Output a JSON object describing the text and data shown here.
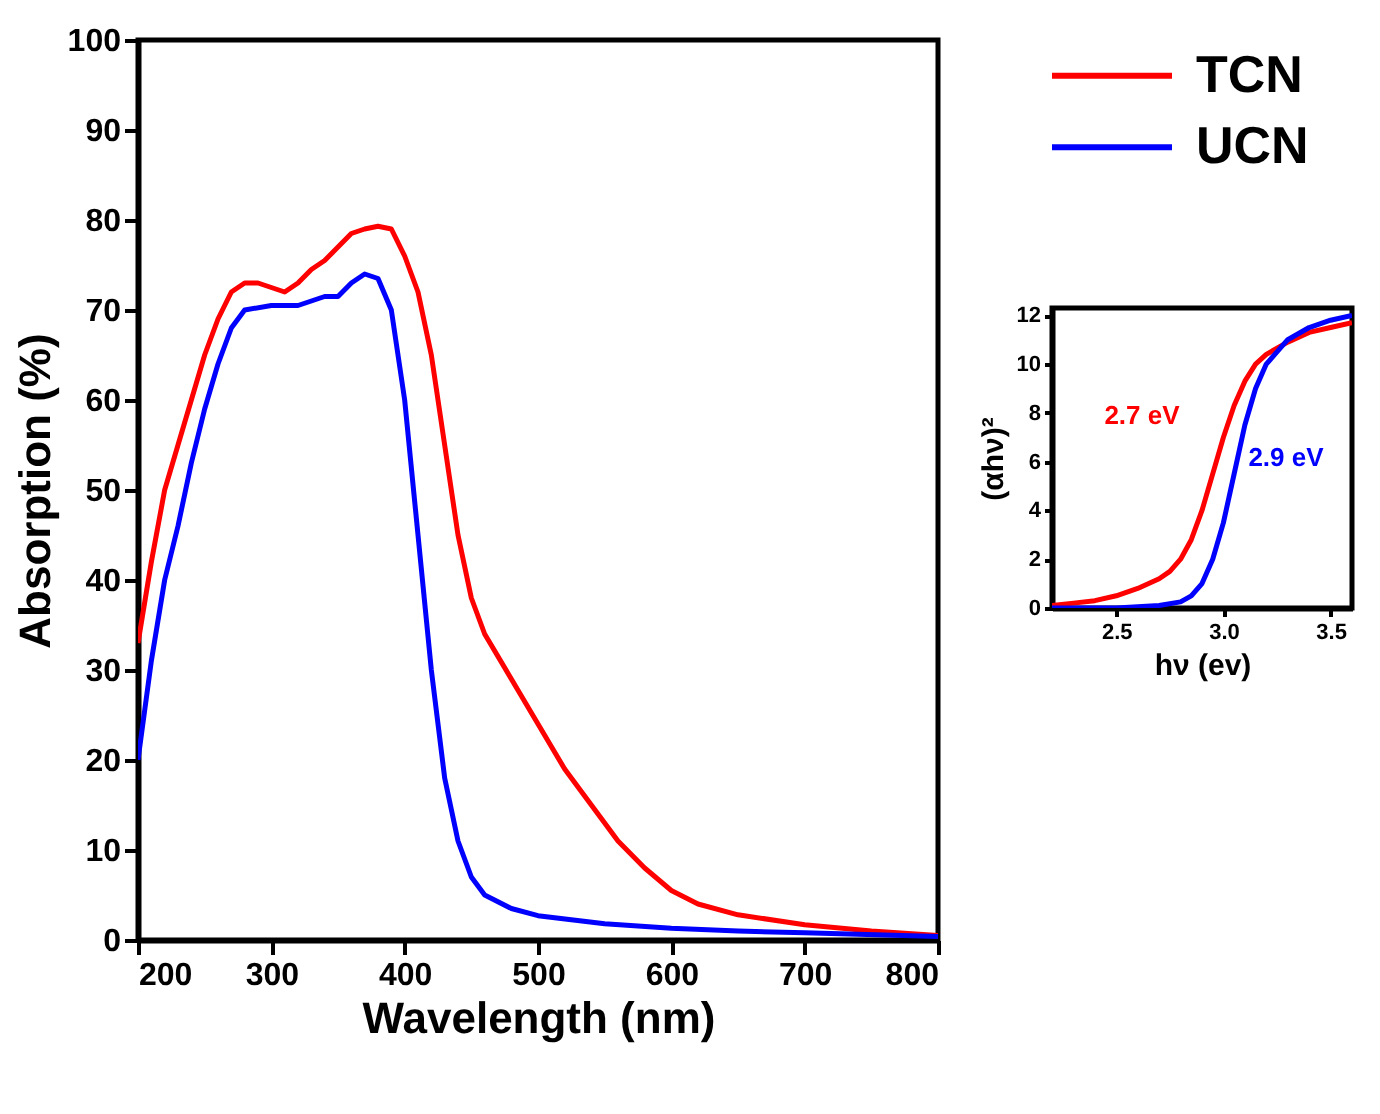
{
  "chart_data": [
    {
      "type": "line",
      "xlabel": "Wavelength (nm)",
      "ylabel": "Absorption (%)",
      "xlim": [
        200,
        800
      ],
      "xticks": [
        200,
        300,
        400,
        500,
        600,
        700,
        800
      ],
      "ylim": [
        0,
        100
      ],
      "yticks": [
        0,
        10,
        20,
        30,
        40,
        50,
        60,
        70,
        80,
        90,
        100
      ],
      "legend": "top right",
      "grid": false,
      "series": [
        {
          "name": "TCN",
          "color": "#ff0000",
          "x": [
            200,
            210,
            220,
            230,
            240,
            250,
            260,
            270,
            280,
            290,
            300,
            310,
            320,
            330,
            340,
            350,
            360,
            370,
            380,
            390,
            400,
            410,
            420,
            430,
            440,
            450,
            460,
            480,
            500,
            520,
            540,
            560,
            580,
            600,
            620,
            650,
            700,
            750,
            800
          ],
          "values": [
            33,
            42,
            50,
            55,
            60,
            65,
            69,
            72,
            73,
            73,
            72.5,
            72,
            73,
            74.5,
            75.5,
            77,
            78.5,
            79,
            79.3,
            79,
            76,
            72,
            65,
            55,
            45,
            38,
            34,
            29,
            24,
            19,
            15,
            11,
            8,
            5.5,
            4,
            2.8,
            1.7,
            1,
            0.5
          ]
        },
        {
          "name": "UCN",
          "color": "#0000ff",
          "x": [
            200,
            210,
            220,
            230,
            240,
            250,
            260,
            270,
            280,
            300,
            320,
            330,
            340,
            350,
            360,
            370,
            380,
            390,
            400,
            410,
            420,
            430,
            440,
            450,
            460,
            480,
            500,
            550,
            600,
            650,
            700,
            800
          ],
          "values": [
            20,
            31,
            40,
            46,
            53,
            59,
            64,
            68,
            70,
            70.5,
            70.5,
            71,
            71.5,
            71.5,
            73,
            74,
            73.5,
            70,
            60,
            45,
            30,
            18,
            11,
            7,
            5,
            3.5,
            2.7,
            1.8,
            1.3,
            1,
            0.8,
            0.4
          ]
        }
      ]
    },
    {
      "type": "line",
      "xlabel": "hν (ev)",
      "ylabel": "(αhν)²",
      "xlim": [
        2.2,
        3.6
      ],
      "xticks": [
        2.5,
        {
          "value": 3.0,
          "label": "3.0"
        },
        3.5
      ],
      "ylim": [
        0,
        12.3
      ],
      "yticks": [
        0,
        2,
        4,
        6,
        8,
        10,
        12
      ],
      "grid": false,
      "annotations": [
        "2.7 eV",
        "2.9 eV"
      ],
      "series": [
        {
          "color": "#ff0000",
          "x": [
            2.2,
            2.3,
            2.4,
            2.5,
            2.6,
            2.7,
            2.75,
            2.8,
            2.85,
            2.9,
            2.95,
            3.0,
            3.05,
            3.1,
            3.15,
            3.2,
            3.3,
            3.4,
            3.5,
            3.6
          ],
          "values": [
            0.1,
            0.2,
            0.3,
            0.5,
            0.8,
            1.2,
            1.5,
            2.0,
            2.8,
            4.0,
            5.5,
            7.0,
            8.3,
            9.3,
            10.0,
            10.4,
            10.9,
            11.3,
            11.5,
            11.7
          ]
        },
        {
          "color": "#0000ff",
          "x": [
            2.2,
            2.5,
            2.7,
            2.8,
            2.85,
            2.9,
            2.95,
            3.0,
            3.05,
            3.1,
            3.15,
            3.2,
            3.25,
            3.3,
            3.4,
            3.5,
            3.6
          ],
          "values": [
            0,
            0,
            0.1,
            0.25,
            0.5,
            1.0,
            2.0,
            3.5,
            5.5,
            7.5,
            9.0,
            10.0,
            10.5,
            11.0,
            11.5,
            11.8,
            12.0
          ]
        }
      ]
    }
  ]
}
